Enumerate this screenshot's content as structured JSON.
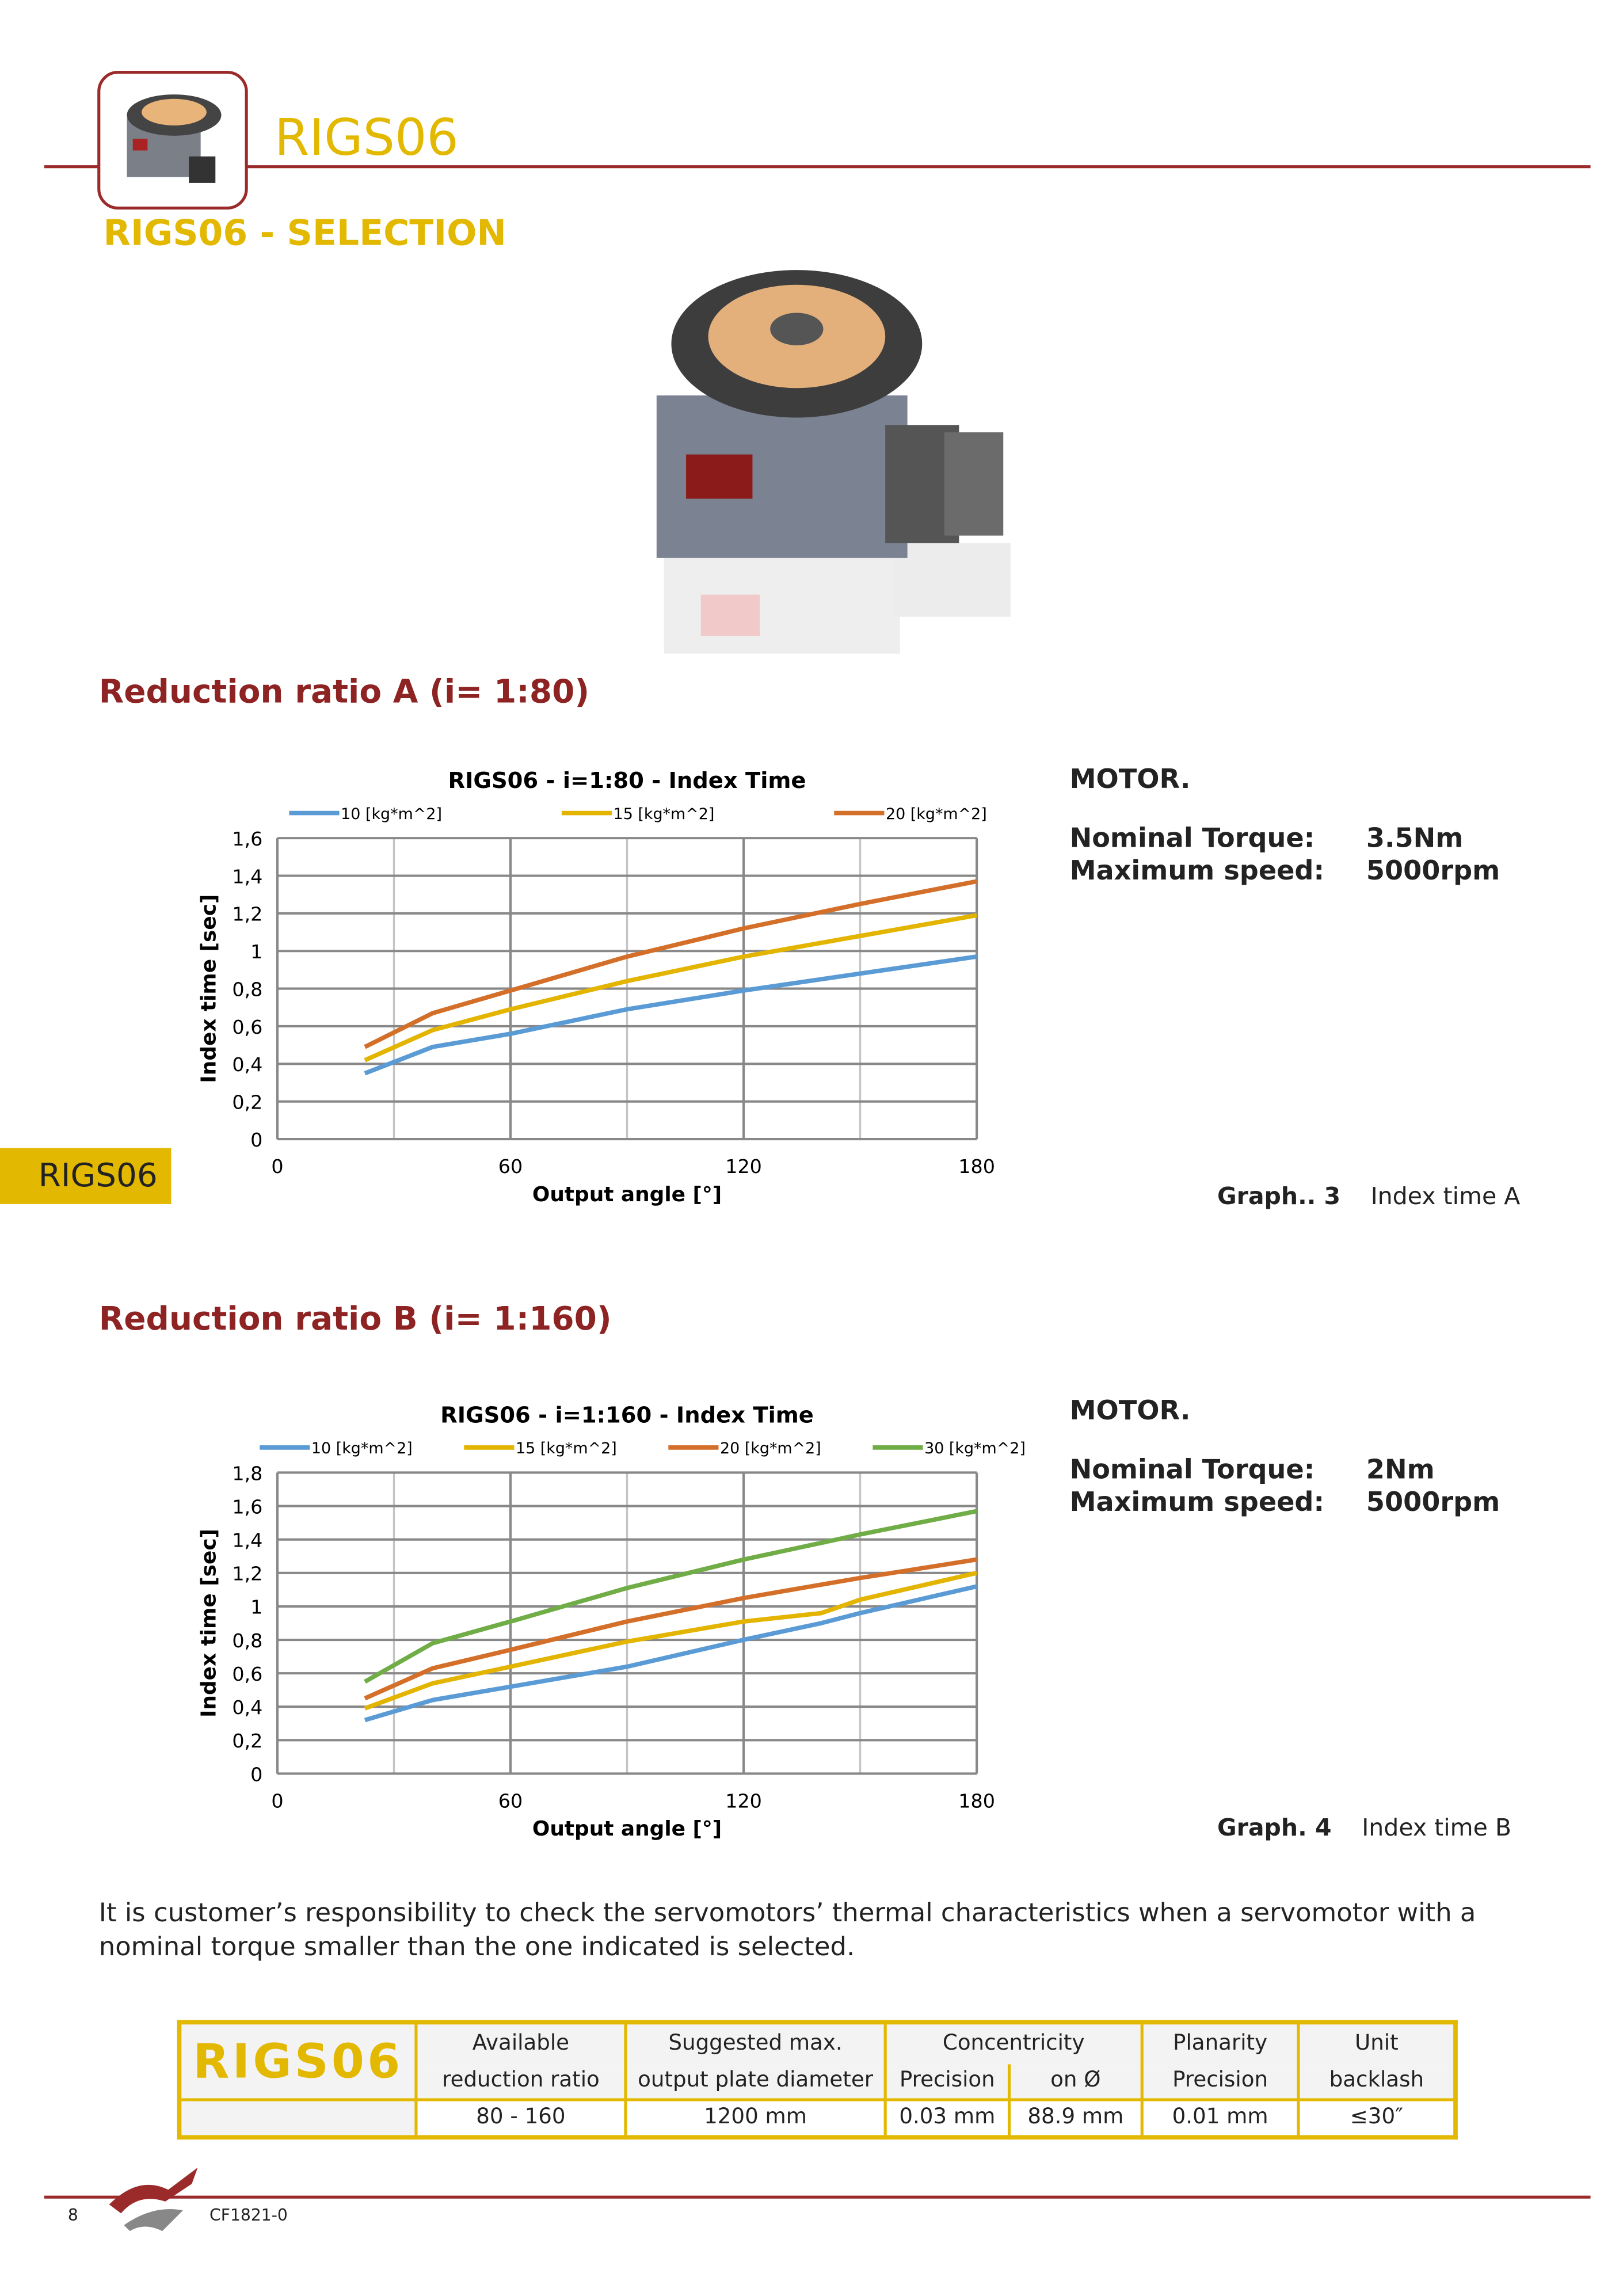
{
  "header": {
    "brand": "RIGS06",
    "selection_title": "RIGS06 - SELECTION"
  },
  "side_tab": "RIGS06",
  "section_a": {
    "title": "Reduction ratio A (i= 1:80)",
    "motor": {
      "heading": "MOTOR.",
      "torque_label": "Nominal Torque:",
      "torque_value": "3.5Nm",
      "speed_label": "Maximum speed:",
      "speed_value": "5000rpm"
    },
    "caption_label": "Graph.. 3",
    "caption_text": "Index time A"
  },
  "section_b": {
    "title": "Reduction ratio B (i= 1:160)",
    "motor": {
      "heading": "MOTOR.",
      "torque_label": "Nominal Torque:",
      "torque_value": "2Nm",
      "speed_label": "Maximum speed:",
      "speed_value": "5000rpm"
    },
    "caption_label": "Graph. 4",
    "caption_text": "Index time B"
  },
  "note": "It is customer’s responsibility to check the servomotors’ thermal characteristics when a servomotor with a nominal torque smaller than the one indicated is selected.",
  "table": {
    "brand": "RIGS06",
    "h1": [
      "Available",
      "Suggested max.",
      "Concentricity",
      "Planarity",
      "Unit"
    ],
    "h2": [
      "reduction ratio",
      "output plate diameter",
      "Precision",
      "on Ø",
      "Precision",
      "backlash"
    ],
    "values": [
      "80 - 160",
      "1200 mm",
      "0.03 mm",
      "88.9 mm",
      "0.01 mm",
      "≤30″"
    ]
  },
  "footer": {
    "page": "8",
    "code": "CF1821-0"
  },
  "chart_data": [
    {
      "type": "line",
      "title": "RIGS06  - i=1:80  - Index  Time",
      "xlabel": "Output angle [°]",
      "ylabel": "Index time [sec]",
      "xlim": [
        0,
        180
      ],
      "ylim": [
        0,
        1.6
      ],
      "xticks": [
        "0",
        "60",
        "120",
        "180"
      ],
      "yticks": [
        "0",
        "0,2",
        "0,4",
        "0,6",
        "0,8",
        "1",
        "1,2",
        "1,4",
        "1,6"
      ],
      "grid": true,
      "legend": "top",
      "x": [
        22.5,
        40,
        60,
        90,
        120,
        150,
        180
      ],
      "series": [
        {
          "name": "10 [kg*m^2]",
          "color": "#5b9bd5",
          "values": [
            0.35,
            0.49,
            0.56,
            0.69,
            0.79,
            0.88,
            0.97
          ]
        },
        {
          "name": "15 [kg*m^2]",
          "color": "#e3b400",
          "values": [
            0.42,
            0.58,
            0.69,
            0.84,
            0.97,
            1.08,
            1.19
          ]
        },
        {
          "name": "20 [kg*m^2]",
          "color": "#d46f2a",
          "values": [
            0.49,
            0.67,
            0.79,
            0.97,
            1.12,
            1.25,
            1.37
          ]
        }
      ]
    },
    {
      "type": "line",
      "title": "RIGS06  - i=1:160 -  Index  Time",
      "xlabel": "Output angle [°]",
      "ylabel": "Index time [sec]",
      "xlim": [
        0,
        180
      ],
      "ylim": [
        0,
        1.8
      ],
      "xticks": [
        "0",
        "60",
        "120",
        "180"
      ],
      "yticks": [
        "0",
        "0,2",
        "0,4",
        "0,6",
        "0,8",
        "1",
        "1,2",
        "1,4",
        "1,6",
        "1,8"
      ],
      "grid": true,
      "legend": "top",
      "x": [
        22.5,
        40,
        60,
        90,
        120,
        140,
        150,
        180
      ],
      "series": [
        {
          "name": "10 [kg*m^2]",
          "color": "#5b9bd5",
          "values": [
            0.32,
            0.44,
            0.52,
            0.64,
            0.8,
            0.9,
            0.96,
            1.12
          ]
        },
        {
          "name": "15 [kg*m^2]",
          "color": "#e3b400",
          "values": [
            0.39,
            0.54,
            0.64,
            0.79,
            0.91,
            0.96,
            1.04,
            1.2
          ]
        },
        {
          "name": "20 [kg*m^2]",
          "color": "#d46f2a",
          "values": [
            0.45,
            0.63,
            0.74,
            0.91,
            1.05,
            1.13,
            1.17,
            1.28
          ]
        },
        {
          "name": "30 [kg*m^2]",
          "color": "#70ad47",
          "values": [
            0.55,
            0.78,
            0.91,
            1.11,
            1.28,
            1.38,
            1.43,
            1.57
          ]
        }
      ]
    }
  ]
}
